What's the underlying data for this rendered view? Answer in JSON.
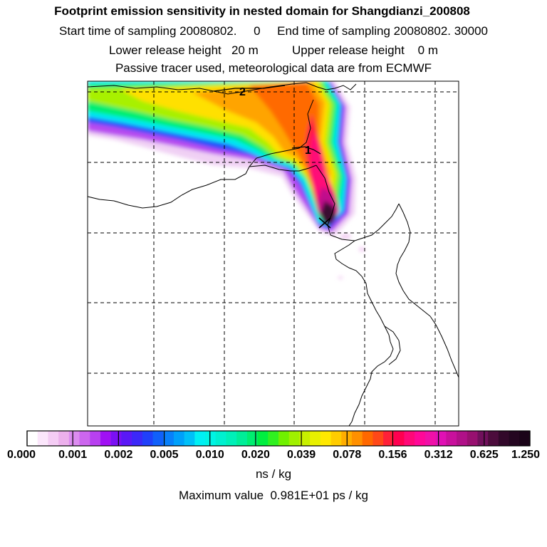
{
  "titles": {
    "main": "Footprint emission sensitivity in nested domain for Shangdianzi_200808",
    "sampling": "Start time of sampling 20080802.     0     End time of sampling 20080802. 30000",
    "release": "Lower release height   20 m          Upper release height    0 m",
    "note": "Passive tracer used, meteorological data are from ECMWF"
  },
  "map": {
    "contour_labels": [
      "2",
      "1"
    ],
    "receptor_marker": "x-marker-icon"
  },
  "colorbar": {
    "ticks": [
      "0.000",
      "0.001",
      "0.002",
      "0.005",
      "0.010",
      "0.020",
      "0.039",
      "0.078",
      "0.156",
      "0.312",
      "0.625",
      "1.250"
    ],
    "colors": [
      "#ffffff",
      "#fbe6fb",
      "#f4ccf4",
      "#ecb0ec",
      "#dc8cf0",
      "#cc66ee",
      "#b840f0",
      "#a010f4",
      "#7a10f4",
      "#5a18f6",
      "#3c28f8",
      "#2040fa",
      "#1060fa",
      "#0880fa",
      "#00a0fa",
      "#00c0f8",
      "#00f0f4",
      "#00f4e4",
      "#00f0d0",
      "#00f0b8",
      "#00ee98",
      "#00ee70",
      "#00ee40",
      "#30f020",
      "#70f000",
      "#a0f000",
      "#c8f000",
      "#e8f000",
      "#ffe800",
      "#ffcc00",
      "#ffae00",
      "#ff9000",
      "#ff6800",
      "#ff4818",
      "#ff2038",
      "#ff0050",
      "#ff0878",
      "#ff0898",
      "#f010a8",
      "#e010b4",
      "#c8109c",
      "#b01088",
      "#981070",
      "#70105c",
      "#4c0c3c",
      "#32082a",
      "#240620",
      "#1a0418"
    ],
    "unit": "ns / kg"
  },
  "footer": {
    "max_value": "Maximum value  0.981E+01 ps / kg"
  }
}
